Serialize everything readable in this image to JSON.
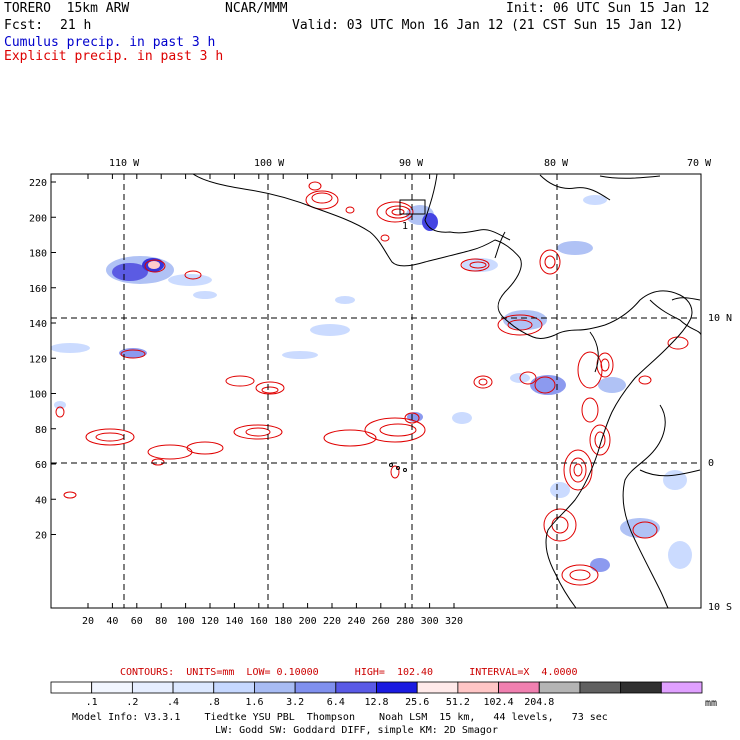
{
  "header": {
    "model": "TORERO  15km ARW",
    "org": "NCAR/MMM",
    "init": "Init: 06 UTC Sun 15 Jan 12",
    "fcst_label": "Fcst:",
    "fcst_value": "21 h",
    "valid": "Valid: 03 UTC Mon 16 Jan 12 (21 CST Sun 15 Jan 12)",
    "field1": "Cumulus precip. in past 3 h",
    "field2": "Explicit precip. in past 3 h",
    "field1_color": "#0000cc",
    "field2_color": "#dd0000"
  },
  "map": {
    "lon_labels": [
      "110 W",
      "100 W",
      "90 W",
      "80 W",
      "70 W"
    ],
    "lat_labels": [
      "10 N",
      "0",
      "10 S"
    ],
    "y_ticks": [
      "220",
      "200",
      "180",
      "160",
      "140",
      "120",
      "100",
      "80",
      "60",
      "40",
      "20"
    ],
    "x_ticks": [
      "20",
      "40",
      "60",
      "80",
      "100",
      "120",
      "140",
      "160",
      "180",
      "200",
      "220",
      "240",
      "260",
      "280",
      "300",
      "320"
    ],
    "point_label": "1",
    "coast_color": "#000000",
    "grid_color": "#000000",
    "contour_color": "#e00000"
  },
  "contours": {
    "text": "CONTOURS:  UNITS=mm  LOW= 0.10000      HIGH=  102.40      INTERVAL=X  4.0000",
    "color": "#cc0000"
  },
  "colorbar": {
    "colors": [
      "#ffffff",
      "#f2f6ff",
      "#e6eeff",
      "#dce8ff",
      "#c6d8ff",
      "#a8bcf4",
      "#8090ee",
      "#5a5ae6",
      "#1a1ae0",
      "#ffeaea",
      "#ffc6c6",
      "#f080b0",
      "#b4b4b4",
      "#606060",
      "#303030",
      "#e0a0ff"
    ],
    "labels": [
      ".1",
      ".2",
      ".4",
      ".8",
      "1.6",
      "3.2",
      "6.4",
      "12.8",
      "25.6",
      "51.2",
      "102.4",
      "204.8"
    ],
    "unit": "mm"
  },
  "footer": {
    "line1": "Model Info: V3.3.1    Tiedtke YSU PBL  Thompson    Noah LSM  15 km,   44 levels,   73 sec",
    "line2": "LW: Godd SW: Goddard DIFF, simple KM: 2D Smagor"
  }
}
